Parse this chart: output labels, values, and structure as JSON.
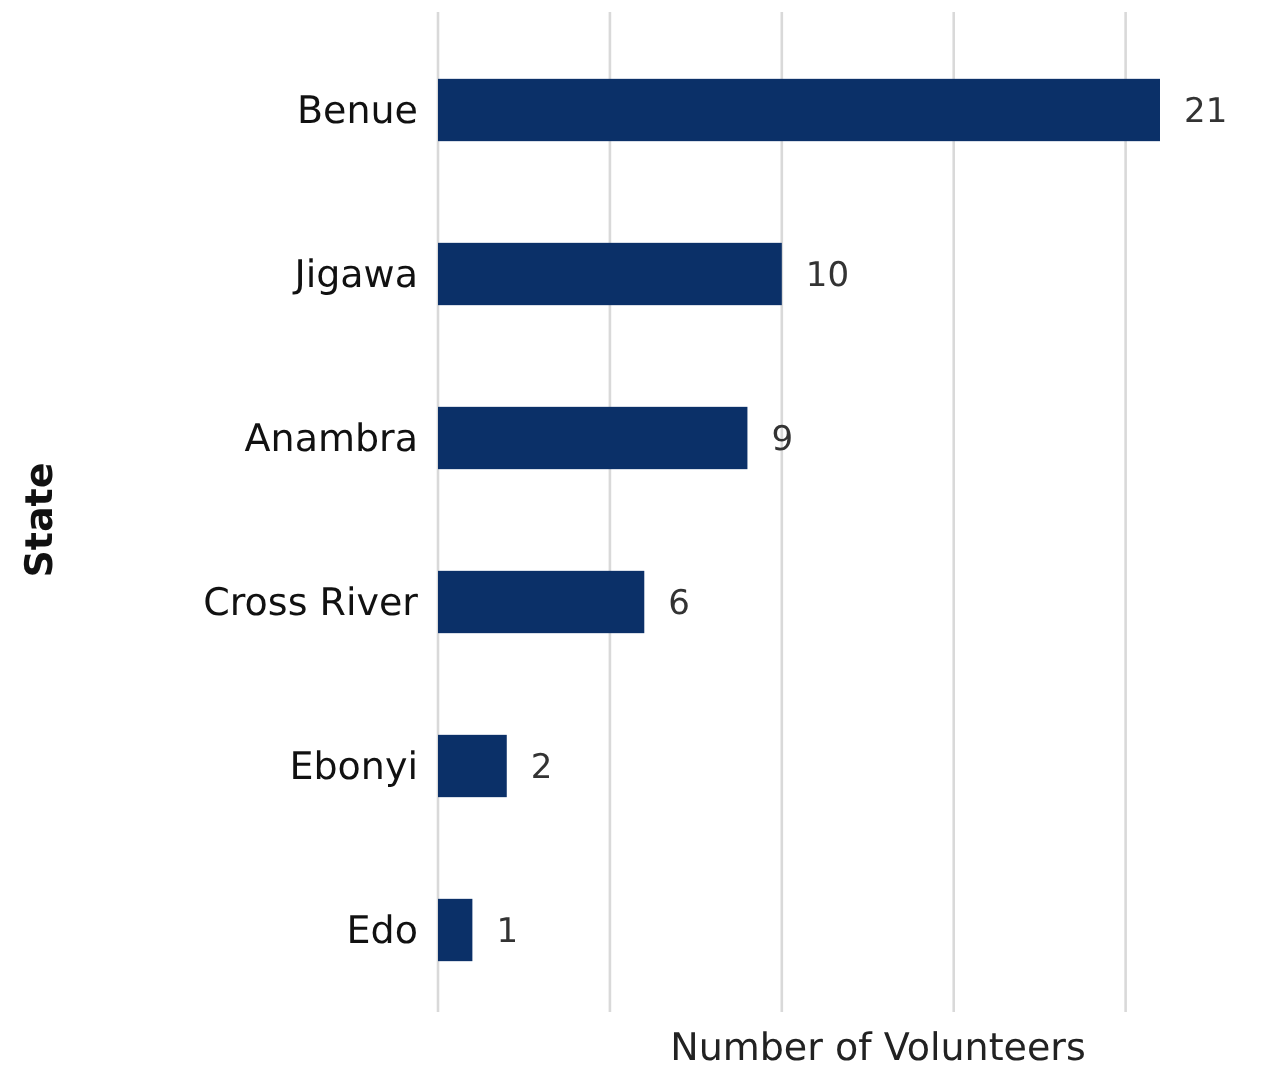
{
  "chart_data": {
    "type": "bar",
    "orientation": "horizontal",
    "xlabel": "Number of Volunteers",
    "ylabel": "State",
    "categories": [
      "Benue",
      "Jigawa",
      "Anambra",
      "Cross River",
      "Ebonyi",
      "Edo"
    ],
    "values": [
      21,
      10,
      9,
      6,
      2,
      1
    ],
    "color": "#0b3068",
    "xticks": [
      {
        "value": 0,
        "label": null
      },
      {
        "value": 5,
        "label": null
      },
      {
        "value": 10,
        "label": null
      },
      {
        "value": 15,
        "label": null
      },
      {
        "value": 20,
        "label": null
      }
    ],
    "tick_labels": "y",
    "grid": "x",
    "data_labels": true
  }
}
